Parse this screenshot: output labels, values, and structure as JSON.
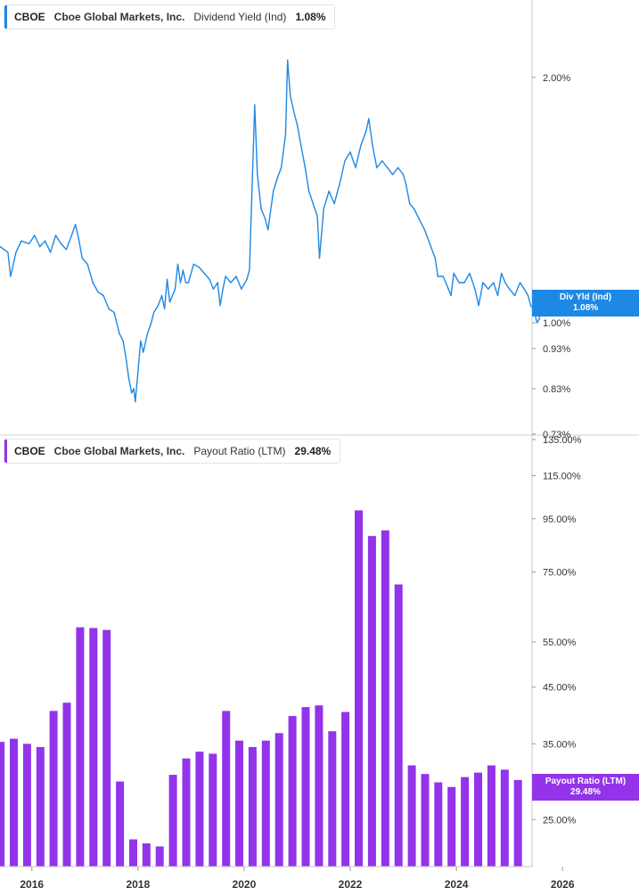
{
  "chart_data": [
    {
      "type": "line",
      "legend": {
        "ticker": "CBOE",
        "company": "Cboe Global Markets, Inc.",
        "metric": "Dividend Yield (Ind)",
        "value": "1.08%"
      },
      "tag": {
        "label": "Div Yld (Ind)",
        "value": "1.08%"
      },
      "color": "#1e88e5",
      "log_scale": true,
      "ylim": [
        0.73,
        2.25
      ],
      "y_ticks": [
        {
          "v": 2.0,
          "label": "2.00%"
        },
        {
          "v": 1.0,
          "label": "1.00%"
        },
        {
          "v": 0.93,
          "label": "0.93%"
        },
        {
          "v": 0.83,
          "label": "0.83%"
        },
        {
          "v": 0.73,
          "label": "0.73%"
        }
      ],
      "points": [
        [
          2015.4,
          1.24
        ],
        [
          2015.55,
          1.22
        ],
        [
          2015.6,
          1.14
        ],
        [
          2015.7,
          1.22
        ],
        [
          2015.8,
          1.26
        ],
        [
          2015.95,
          1.25
        ],
        [
          2016.05,
          1.28
        ],
        [
          2016.15,
          1.24
        ],
        [
          2016.25,
          1.26
        ],
        [
          2016.35,
          1.22
        ],
        [
          2016.45,
          1.28
        ],
        [
          2016.55,
          1.25
        ],
        [
          2016.65,
          1.23
        ],
        [
          2016.75,
          1.28
        ],
        [
          2016.82,
          1.32
        ],
        [
          2016.88,
          1.27
        ],
        [
          2016.95,
          1.2
        ],
        [
          2017.05,
          1.18
        ],
        [
          2017.15,
          1.12
        ],
        [
          2017.25,
          1.09
        ],
        [
          2017.35,
          1.08
        ],
        [
          2017.45,
          1.04
        ],
        [
          2017.55,
          1.03
        ],
        [
          2017.65,
          0.97
        ],
        [
          2017.72,
          0.95
        ],
        [
          2017.78,
          0.9
        ],
        [
          2017.82,
          0.86
        ],
        [
          2017.88,
          0.82
        ],
        [
          2017.92,
          0.83
        ],
        [
          2017.95,
          0.8
        ],
        [
          2018.0,
          0.87
        ],
        [
          2018.05,
          0.95
        ],
        [
          2018.1,
          0.92
        ],
        [
          2018.18,
          0.97
        ],
        [
          2018.25,
          1.0
        ],
        [
          2018.3,
          1.03
        ],
        [
          2018.38,
          1.05
        ],
        [
          2018.45,
          1.08
        ],
        [
          2018.5,
          1.04
        ],
        [
          2018.55,
          1.13
        ],
        [
          2018.6,
          1.06
        ],
        [
          2018.7,
          1.1
        ],
        [
          2018.75,
          1.18
        ],
        [
          2018.8,
          1.12
        ],
        [
          2018.85,
          1.16
        ],
        [
          2018.9,
          1.12
        ],
        [
          2018.95,
          1.12
        ],
        [
          2019.05,
          1.18
        ],
        [
          2019.15,
          1.17
        ],
        [
          2019.25,
          1.15
        ],
        [
          2019.35,
          1.13
        ],
        [
          2019.42,
          1.1
        ],
        [
          2019.5,
          1.12
        ],
        [
          2019.55,
          1.05
        ],
        [
          2019.6,
          1.1
        ],
        [
          2019.65,
          1.14
        ],
        [
          2019.75,
          1.12
        ],
        [
          2019.85,
          1.14
        ],
        [
          2019.95,
          1.1
        ],
        [
          2020.05,
          1.13
        ],
        [
          2020.1,
          1.16
        ],
        [
          2020.2,
          1.85
        ],
        [
          2020.25,
          1.52
        ],
        [
          2020.32,
          1.38
        ],
        [
          2020.4,
          1.34
        ],
        [
          2020.45,
          1.3
        ],
        [
          2020.55,
          1.45
        ],
        [
          2020.62,
          1.5
        ],
        [
          2020.7,
          1.55
        ],
        [
          2020.78,
          1.7
        ],
        [
          2020.82,
          2.1
        ],
        [
          2020.87,
          1.9
        ],
        [
          2020.95,
          1.8
        ],
        [
          2021.0,
          1.75
        ],
        [
          2021.05,
          1.68
        ],
        [
          2021.15,
          1.55
        ],
        [
          2021.22,
          1.45
        ],
        [
          2021.3,
          1.4
        ],
        [
          2021.38,
          1.35
        ],
        [
          2021.42,
          1.2
        ],
        [
          2021.5,
          1.38
        ],
        [
          2021.6,
          1.45
        ],
        [
          2021.7,
          1.4
        ],
        [
          2021.8,
          1.48
        ],
        [
          2021.9,
          1.58
        ],
        [
          2022.0,
          1.62
        ],
        [
          2022.1,
          1.55
        ],
        [
          2022.2,
          1.65
        ],
        [
          2022.3,
          1.72
        ],
        [
          2022.35,
          1.78
        ],
        [
          2022.42,
          1.65
        ],
        [
          2022.5,
          1.55
        ],
        [
          2022.6,
          1.58
        ],
        [
          2022.7,
          1.55
        ],
        [
          2022.8,
          1.52
        ],
        [
          2022.9,
          1.55
        ],
        [
          2023.0,
          1.52
        ],
        [
          2023.05,
          1.48
        ],
        [
          2023.12,
          1.4
        ],
        [
          2023.2,
          1.38
        ],
        [
          2023.3,
          1.34
        ],
        [
          2023.4,
          1.3
        ],
        [
          2023.5,
          1.25
        ],
        [
          2023.6,
          1.2
        ],
        [
          2023.65,
          1.14
        ],
        [
          2023.75,
          1.14
        ],
        [
          2023.85,
          1.1
        ],
        [
          2023.9,
          1.08
        ],
        [
          2023.95,
          1.15
        ],
        [
          2024.05,
          1.12
        ],
        [
          2024.15,
          1.12
        ],
        [
          2024.25,
          1.15
        ],
        [
          2024.35,
          1.1
        ],
        [
          2024.42,
          1.05
        ],
        [
          2024.5,
          1.12
        ],
        [
          2024.6,
          1.1
        ],
        [
          2024.7,
          1.12
        ],
        [
          2024.78,
          1.08
        ],
        [
          2024.85,
          1.15
        ],
        [
          2024.92,
          1.12
        ],
        [
          2025.0,
          1.1
        ],
        [
          2025.1,
          1.08
        ],
        [
          2025.2,
          1.12
        ],
        [
          2025.28,
          1.1
        ],
        [
          2025.35,
          1.08
        ],
        [
          2025.4,
          1.05
        ],
        [
          2025.47,
          1.03
        ],
        [
          2025.52,
          1.0
        ],
        [
          2025.56,
          1.01
        ],
        [
          2025.6,
          1.06
        ],
        [
          2025.63,
          1.08
        ]
      ]
    },
    {
      "type": "bar",
      "legend": {
        "ticker": "CBOE",
        "company": "Cboe Global Markets, Inc.",
        "metric": "Payout Ratio (LTM)",
        "value": "29.48%"
      },
      "tag": {
        "label": "Payout Ratio (LTM)",
        "value": "29.48%"
      },
      "color": "#9333ea",
      "log_scale": true,
      "ylim": [
        20.3,
        135
      ],
      "y_ticks": [
        {
          "v": 135,
          "label": "135.00%"
        },
        {
          "v": 115,
          "label": "115.00%"
        },
        {
          "v": 95,
          "label": "95.00%"
        },
        {
          "v": 75,
          "label": "75.00%"
        },
        {
          "v": 55,
          "label": "55.00%"
        },
        {
          "v": 45,
          "label": "45.00%"
        },
        {
          "v": 35,
          "label": "35.00%"
        },
        {
          "v": 25,
          "label": "25.00%"
        }
      ],
      "bars": [
        [
          2015.41,
          35.3
        ],
        [
          2015.66,
          35.8
        ],
        [
          2015.91,
          35.0
        ],
        [
          2016.16,
          34.5
        ],
        [
          2016.41,
          40.5
        ],
        [
          2016.66,
          42.0
        ],
        [
          2016.91,
          58.7
        ],
        [
          2017.16,
          58.5
        ],
        [
          2017.41,
          58.0
        ],
        [
          2017.66,
          29.6
        ],
        [
          2017.91,
          22.9
        ],
        [
          2018.16,
          22.5
        ],
        [
          2018.41,
          22.2
        ],
        [
          2018.66,
          30.5
        ],
        [
          2018.91,
          32.8
        ],
        [
          2019.16,
          33.8
        ],
        [
          2019.41,
          33.5
        ],
        [
          2019.66,
          40.5
        ],
        [
          2019.91,
          35.5
        ],
        [
          2020.16,
          34.5
        ],
        [
          2020.41,
          35.5
        ],
        [
          2020.66,
          36.7
        ],
        [
          2020.91,
          39.6
        ],
        [
          2021.16,
          41.2
        ],
        [
          2021.41,
          41.5
        ],
        [
          2021.66,
          37.0
        ],
        [
          2021.91,
          40.3
        ],
        [
          2022.16,
          98.6
        ],
        [
          2022.41,
          88.0
        ],
        [
          2022.66,
          90.2
        ],
        [
          2022.91,
          71.0
        ],
        [
          2023.16,
          31.8
        ],
        [
          2023.41,
          30.6
        ],
        [
          2023.66,
          29.5
        ],
        [
          2023.91,
          28.9
        ],
        [
          2024.16,
          30.2
        ],
        [
          2024.41,
          30.8
        ],
        [
          2024.66,
          31.8
        ],
        [
          2024.91,
          31.2
        ],
        [
          2025.16,
          29.8
        ]
      ]
    }
  ],
  "x_axis": {
    "ticks": [
      {
        "year": 2016,
        "label": "2016"
      },
      {
        "year": 2018,
        "label": "2018"
      },
      {
        "year": 2020,
        "label": "2020"
      },
      {
        "year": 2022,
        "label": "2022"
      },
      {
        "year": 2024,
        "label": "2024"
      },
      {
        "year": 2026,
        "label": "2026"
      }
    ]
  }
}
